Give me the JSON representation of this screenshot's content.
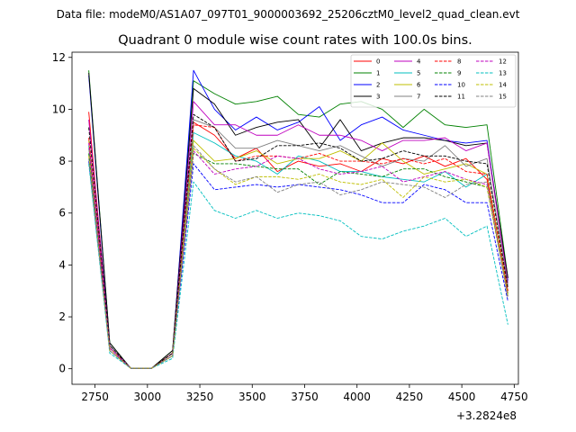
{
  "figure": {
    "suptitle": "Data file: modeM0/AS1A07_097T01_9000003692_25206cztM0_level2_quad_clean.evt"
  },
  "chart_data": {
    "type": "line",
    "title": "Quadrant 0 module wise count rates with 100.0s bins.",
    "xlabel": "",
    "ylabel": "",
    "x_offset_label": "+3.2824e8",
    "xlim": [
      2640,
      4770
    ],
    "ylim": [
      -0.6,
      12.2
    ],
    "xticks": [
      2750,
      3000,
      3250,
      3500,
      3750,
      4000,
      4250,
      4500,
      4750
    ],
    "yticks": [
      0,
      2,
      4,
      6,
      8,
      10,
      12
    ],
    "x": [
      2720,
      2820,
      2920,
      3020,
      3120,
      3220,
      3320,
      3420,
      3520,
      3620,
      3720,
      3820,
      3920,
      4020,
      4120,
      4220,
      4320,
      4420,
      4520,
      4620,
      4720
    ],
    "legend_position": "upper-right",
    "series": [
      {
        "name": "0",
        "color": "#ff0000",
        "style": "solid",
        "values": [
          9.9,
          0.8,
          0.02,
          0.02,
          0.6,
          9.5,
          9.0,
          8.1,
          8.5,
          7.6,
          8.0,
          7.8,
          7.9,
          7.6,
          8.1,
          7.9,
          8.2,
          7.8,
          8.1,
          7.3,
          3.0
        ]
      },
      {
        "name": "1",
        "color": "#008000",
        "style": "solid",
        "values": [
          11.5,
          1.0,
          0.02,
          0.02,
          0.7,
          11.1,
          10.6,
          10.2,
          10.3,
          10.5,
          9.8,
          9.7,
          10.2,
          10.3,
          10.0,
          9.3,
          10.0,
          9.4,
          9.3,
          9.4,
          3.5
        ]
      },
      {
        "name": "2",
        "color": "#0000ff",
        "style": "solid",
        "values": [
          11.3,
          0.9,
          0.02,
          0.02,
          0.6,
          11.5,
          10.0,
          9.2,
          9.7,
          9.2,
          9.5,
          10.1,
          8.8,
          9.4,
          9.7,
          9.2,
          9.0,
          8.8,
          8.7,
          8.8,
          3.4
        ]
      },
      {
        "name": "3",
        "color": "#000000",
        "style": "solid",
        "values": [
          11.4,
          1.0,
          0.02,
          0.02,
          0.7,
          10.8,
          10.2,
          9.0,
          9.3,
          9.5,
          9.6,
          8.5,
          9.6,
          8.4,
          8.7,
          8.9,
          8.9,
          8.8,
          8.6,
          8.7,
          3.5
        ]
      },
      {
        "name": "4",
        "color": "#bf00bf",
        "style": "solid",
        "values": [
          9.6,
          0.9,
          0.02,
          0.02,
          0.6,
          10.3,
          9.4,
          9.4,
          9.0,
          9.0,
          9.4,
          9.0,
          9.0,
          8.8,
          8.4,
          8.8,
          8.8,
          8.9,
          8.4,
          8.7,
          3.3
        ]
      },
      {
        "name": "5",
        "color": "#00bfbf",
        "style": "solid",
        "values": [
          8.6,
          0.8,
          0.02,
          0.02,
          0.5,
          9.1,
          8.7,
          8.2,
          8.0,
          7.5,
          8.2,
          8.0,
          7.6,
          7.6,
          7.4,
          7.3,
          7.2,
          7.6,
          7.0,
          7.5,
          2.9
        ]
      },
      {
        "name": "6",
        "color": "#bfbf00",
        "style": "solid",
        "values": [
          8.8,
          0.8,
          0.02,
          0.02,
          0.5,
          8.8,
          8.0,
          8.1,
          8.4,
          7.9,
          8.1,
          8.1,
          8.4,
          8.0,
          8.7,
          8.0,
          7.5,
          7.7,
          7.9,
          7.5,
          2.9
        ]
      },
      {
        "name": "7",
        "color": "#808080",
        "style": "solid",
        "values": [
          8.5,
          0.9,
          0.02,
          0.02,
          0.6,
          9.6,
          9.3,
          8.5,
          8.5,
          8.8,
          8.6,
          8.4,
          8.6,
          8.2,
          7.8,
          8.1,
          8.0,
          8.6,
          7.8,
          8.1,
          3.2
        ]
      },
      {
        "name": "8",
        "color": "#ff0000",
        "style": "dashed",
        "values": [
          8.9,
          0.8,
          0.02,
          0.02,
          0.6,
          9.4,
          9.3,
          8.0,
          8.2,
          8.2,
          8.1,
          8.3,
          8.0,
          8.0,
          7.9,
          8.1,
          7.9,
          8.1,
          7.6,
          7.5,
          3.0
        ]
      },
      {
        "name": "9",
        "color": "#008000",
        "style": "dashed",
        "values": [
          8.3,
          0.7,
          0.02,
          0.02,
          0.5,
          8.3,
          7.9,
          7.9,
          7.8,
          7.7,
          7.7,
          7.1,
          7.6,
          7.5,
          7.4,
          7.7,
          7.7,
          7.4,
          7.2,
          7.0,
          2.8
        ]
      },
      {
        "name": "10",
        "color": "#0000ff",
        "style": "dashed",
        "values": [
          8.0,
          0.7,
          0.02,
          0.02,
          0.5,
          7.9,
          6.9,
          7.0,
          7.1,
          7.0,
          7.1,
          7.0,
          6.9,
          6.7,
          6.4,
          6.4,
          7.1,
          6.9,
          6.4,
          6.4,
          2.6
        ]
      },
      {
        "name": "11",
        "color": "#000000",
        "style": "dashed",
        "values": [
          9.3,
          0.9,
          0.02,
          0.02,
          0.6,
          9.8,
          9.3,
          8.0,
          8.1,
          8.6,
          8.6,
          8.7,
          8.5,
          8.0,
          8.1,
          8.4,
          8.2,
          8.2,
          8.0,
          7.9,
          3.1
        ]
      },
      {
        "name": "12",
        "color": "#bf00bf",
        "style": "dashed",
        "values": [
          8.7,
          0.8,
          0.02,
          0.02,
          0.5,
          8.4,
          7.5,
          7.7,
          7.8,
          8.2,
          8.1,
          7.7,
          7.5,
          7.6,
          7.8,
          7.2,
          7.4,
          7.6,
          7.3,
          7.1,
          2.8
        ]
      },
      {
        "name": "13",
        "color": "#00bfbf",
        "style": "dashed",
        "values": [
          7.9,
          0.6,
          0.02,
          0.02,
          0.4,
          7.2,
          6.1,
          5.8,
          6.1,
          5.8,
          6.0,
          5.9,
          5.7,
          5.1,
          5.0,
          5.3,
          5.5,
          5.8,
          5.1,
          5.5,
          1.7
        ]
      },
      {
        "name": "14",
        "color": "#bfbf00",
        "style": "dashed",
        "values": [
          8.2,
          0.7,
          0.02,
          0.02,
          0.5,
          8.5,
          7.7,
          7.1,
          7.4,
          7.4,
          7.3,
          7.5,
          7.2,
          7.1,
          7.3,
          6.6,
          7.4,
          7.2,
          7.3,
          7.0,
          2.8
        ]
      },
      {
        "name": "15",
        "color": "#808080",
        "style": "dashed",
        "values": [
          8.1,
          0.7,
          0.02,
          0.02,
          0.5,
          8.6,
          7.7,
          7.2,
          7.4,
          6.8,
          7.1,
          7.2,
          6.7,
          6.9,
          7.2,
          7.1,
          7.0,
          6.6,
          7.1,
          7.2,
          2.7
        ]
      }
    ]
  }
}
